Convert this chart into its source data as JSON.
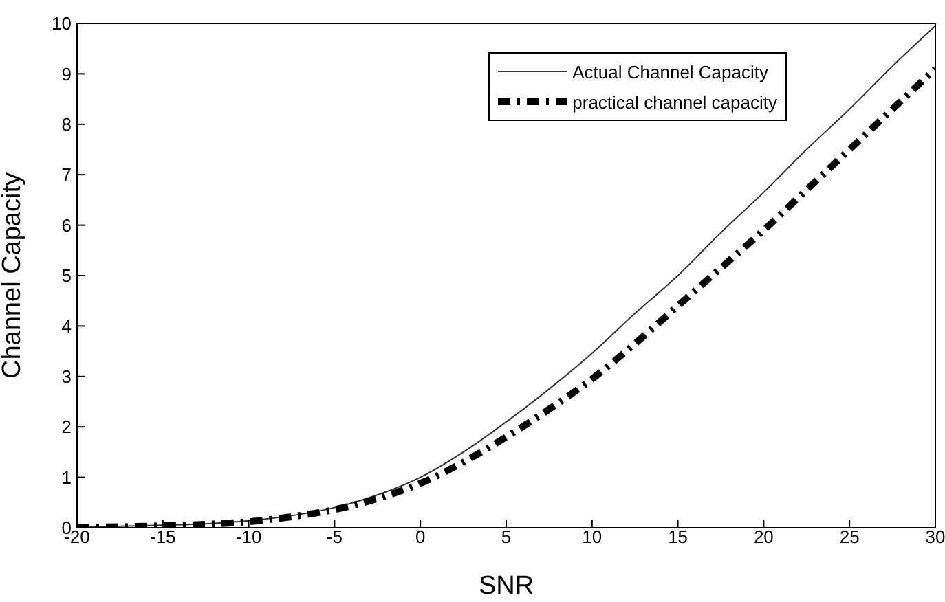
{
  "chart_data": {
    "type": "line",
    "xlabel": "SNR",
    "ylabel": "Channel Capacity",
    "x": [
      -20,
      -17.5,
      -15,
      -12.5,
      -10,
      -7.5,
      -5,
      -2.5,
      0,
      2.5,
      5,
      7.5,
      10,
      12.5,
      15,
      17.5,
      20,
      22.5,
      25,
      27.5,
      30
    ],
    "series": [
      {
        "name": "Actual Channel Capacity",
        "color": "#333333",
        "line_style": "solid",
        "values": [
          0.01,
          0.03,
          0.05,
          0.08,
          0.14,
          0.24,
          0.4,
          0.65,
          1.0,
          1.5,
          2.1,
          2.75,
          3.46,
          4.25,
          5.0,
          5.85,
          6.65,
          7.5,
          8.3,
          9.15,
          9.95
        ]
      },
      {
        "name": "practical channel capacity",
        "color": "#000000",
        "line_style": "dashed",
        "values": [
          0.01,
          0.02,
          0.04,
          0.07,
          0.12,
          0.22,
          0.36,
          0.58,
          0.88,
          1.3,
          1.8,
          2.35,
          2.95,
          3.65,
          4.4,
          5.15,
          5.9,
          6.7,
          7.5,
          8.3,
          9.1
        ]
      }
    ],
    "xlim": [
      -20,
      30
    ],
    "xticks": [
      -20,
      -15,
      -10,
      -5,
      0,
      5,
      10,
      15,
      20,
      25,
      30
    ],
    "ylim": [
      0,
      10
    ],
    "yticks": [
      0,
      1,
      2,
      3,
      4,
      5,
      6,
      7,
      8,
      9,
      10
    ],
    "grid": false,
    "legend": "top right",
    "marker": "none"
  }
}
